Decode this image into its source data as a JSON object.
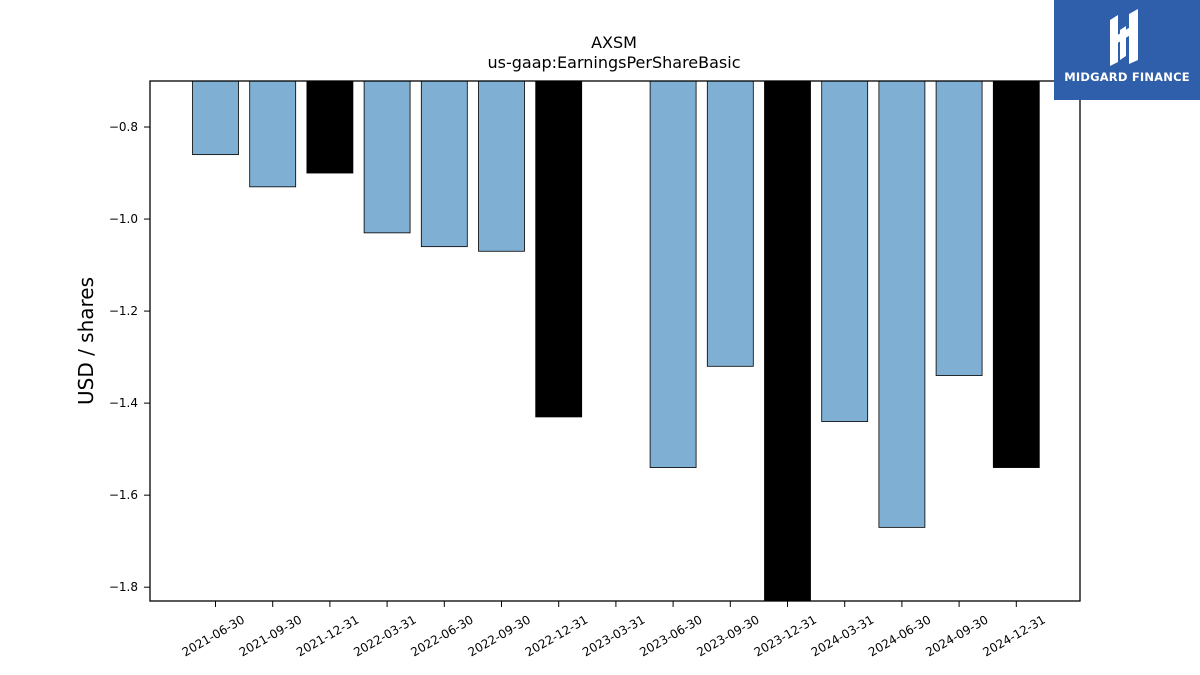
{
  "chart_data": {
    "type": "bar",
    "title": "AXSM",
    "subtitle": "us-gaap:EarningsPerShareBasic",
    "xlabel": "",
    "ylabel": "USD / shares",
    "ylim": [
      -1.83,
      -0.7
    ],
    "yticks": [
      -0.8,
      -1.0,
      -1.2,
      -1.4,
      -1.6,
      -1.8
    ],
    "ytick_labels": [
      "−0.8",
      "−1.0",
      "−1.2",
      "−1.4",
      "−1.6",
      "−1.8"
    ],
    "grid": false,
    "categories": [
      "2021-06-30",
      "2021-09-30",
      "2021-12-31",
      "2022-03-31",
      "2022-06-30",
      "2022-09-30",
      "2022-12-31",
      "2023-03-31",
      "2023-06-30",
      "2023-09-30",
      "2023-12-31",
      "2024-03-31",
      "2024-06-30",
      "2024-09-30",
      "2024-12-31"
    ],
    "values": [
      -0.86,
      -0.93,
      -0.9,
      -1.03,
      -1.06,
      -1.07,
      -1.43,
      null,
      -1.54,
      -1.32,
      -1.83,
      -1.44,
      -1.67,
      -1.34,
      -1.54
    ],
    "colors": [
      "#7fb0d4",
      "#7fb0d4",
      "#000000",
      "#7fb0d4",
      "#7fb0d4",
      "#7fb0d4",
      "#000000",
      null,
      "#7fb0d4",
      "#7fb0d4",
      "#000000",
      "#7fb0d4",
      "#7fb0d4",
      "#7fb0d4",
      "#000000"
    ]
  },
  "logo": {
    "text": "MIDGARD FINANCE",
    "bg_color": "#2f5eaa",
    "icon": "midgard-logo-icon"
  }
}
